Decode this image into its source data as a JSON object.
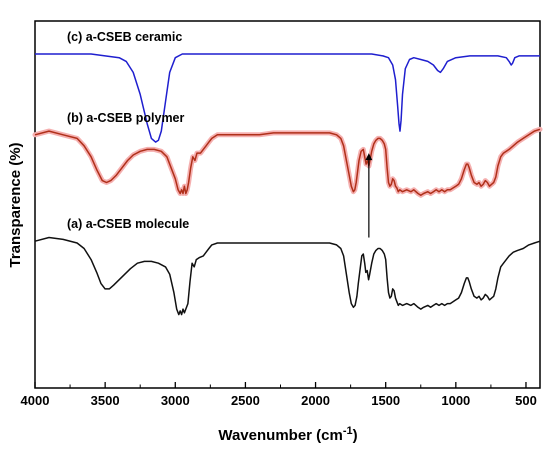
{
  "chart_data": {
    "type": "line",
    "title": "",
    "xlabel": "Wavenumber (cm",
    "xlabel_sup": "-1",
    "xlabel_close": ")",
    "ylabel": "Transparence (%)",
    "xlim": [
      4000,
      400
    ],
    "x_reversed": true,
    "x_ticks": [
      4000,
      3500,
      3000,
      2500,
      2000,
      1500,
      1000,
      500
    ],
    "x_tick_labels": [
      "4000",
      "3500",
      "3000",
      "2500",
      "2000",
      "1500",
      "1000",
      "500"
    ],
    "y_ticks_shown": false,
    "series": [
      {
        "name": "(c) a-CSEB ceramic",
        "color": "#1f1fcf",
        "points": [
          [
            4000,
            91
          ],
          [
            3850,
            91
          ],
          [
            3700,
            91
          ],
          [
            3600,
            91
          ],
          [
            3500,
            90.5
          ],
          [
            3400,
            90
          ],
          [
            3350,
            89
          ],
          [
            3300,
            86
          ],
          [
            3250,
            80
          ],
          [
            3200,
            72
          ],
          [
            3170,
            68
          ],
          [
            3140,
            67
          ],
          [
            3120,
            67.5
          ],
          [
            3100,
            70
          ],
          [
            3070,
            78
          ],
          [
            3040,
            86
          ],
          [
            3000,
            90
          ],
          [
            2950,
            91
          ],
          [
            2800,
            91
          ],
          [
            2500,
            91
          ],
          [
            2000,
            91
          ],
          [
            1800,
            91
          ],
          [
            1600,
            91
          ],
          [
            1520,
            90.5
          ],
          [
            1480,
            90
          ],
          [
            1450,
            88
          ],
          [
            1430,
            84
          ],
          [
            1415,
            77
          ],
          [
            1405,
            72
          ],
          [
            1398,
            70
          ],
          [
            1390,
            73
          ],
          [
            1380,
            80
          ],
          [
            1360,
            87
          ],
          [
            1330,
            89.5
          ],
          [
            1300,
            90
          ],
          [
            1250,
            89.5
          ],
          [
            1200,
            89
          ],
          [
            1160,
            88
          ],
          [
            1130,
            86.5
          ],
          [
            1110,
            86
          ],
          [
            1090,
            87
          ],
          [
            1060,
            89
          ],
          [
            1000,
            90
          ],
          [
            900,
            90.5
          ],
          [
            800,
            90.5
          ],
          [
            700,
            90.5
          ],
          [
            640,
            90
          ],
          [
            620,
            89
          ],
          [
            605,
            88
          ],
          [
            595,
            88.5
          ],
          [
            580,
            90
          ],
          [
            550,
            90.5
          ],
          [
            500,
            90.5
          ],
          [
            400,
            90.5
          ]
        ]
      },
      {
        "name": "(b) a-CSEB polymer",
        "color": "#b0301a",
        "highlight": "#f5b0b0",
        "points": [
          [
            4000,
            69
          ],
          [
            3900,
            70
          ],
          [
            3800,
            69
          ],
          [
            3700,
            68
          ],
          [
            3650,
            66
          ],
          [
            3600,
            63
          ],
          [
            3560,
            59.5
          ],
          [
            3520,
            56.5
          ],
          [
            3490,
            56
          ],
          [
            3460,
            56.5
          ],
          [
            3420,
            58
          ],
          [
            3380,
            60
          ],
          [
            3340,
            62
          ],
          [
            3300,
            63.5
          ],
          [
            3250,
            64.5
          ],
          [
            3200,
            65
          ],
          [
            3150,
            65
          ],
          [
            3100,
            64.5
          ],
          [
            3060,
            63
          ],
          [
            3030,
            60
          ],
          [
            3000,
            57
          ],
          [
            2980,
            54
          ],
          [
            2965,
            53
          ],
          [
            2955,
            54
          ],
          [
            2945,
            53
          ],
          [
            2935,
            55
          ],
          [
            2925,
            53
          ],
          [
            2915,
            54
          ],
          [
            2905,
            56
          ],
          [
            2890,
            60
          ],
          [
            2875,
            63
          ],
          [
            2860,
            62
          ],
          [
            2845,
            64
          ],
          [
            2820,
            64
          ],
          [
            2800,
            65
          ],
          [
            2780,
            66
          ],
          [
            2760,
            67
          ],
          [
            2740,
            68
          ],
          [
            2700,
            69
          ],
          [
            2600,
            69
          ],
          [
            2500,
            69
          ],
          [
            2400,
            69
          ],
          [
            2300,
            69.5
          ],
          [
            2200,
            69.5
          ],
          [
            2100,
            69.5
          ],
          [
            2000,
            69.5
          ],
          [
            1900,
            69.5
          ],
          [
            1850,
            69
          ],
          [
            1820,
            68
          ],
          [
            1800,
            66
          ],
          [
            1780,
            62
          ],
          [
            1760,
            58
          ],
          [
            1745,
            55
          ],
          [
            1730,
            53.5
          ],
          [
            1720,
            54
          ],
          [
            1710,
            56
          ],
          [
            1700,
            59
          ],
          [
            1690,
            62
          ],
          [
            1675,
            64.5
          ],
          [
            1660,
            65
          ],
          [
            1650,
            63
          ],
          [
            1640,
            61
          ],
          [
            1630,
            62
          ],
          [
            1620,
            60.5
          ],
          [
            1612,
            62
          ],
          [
            1600,
            64.5
          ],
          [
            1585,
            66.5
          ],
          [
            1570,
            67.5
          ],
          [
            1555,
            68
          ],
          [
            1540,
            68
          ],
          [
            1525,
            67.5
          ],
          [
            1510,
            66.5
          ],
          [
            1500,
            65
          ],
          [
            1490,
            60
          ],
          [
            1480,
            56
          ],
          [
            1470,
            55
          ],
          [
            1460,
            55.5
          ],
          [
            1450,
            57
          ],
          [
            1440,
            56.5
          ],
          [
            1430,
            55
          ],
          [
            1420,
            54.5
          ],
          [
            1410,
            53.5
          ],
          [
            1400,
            54
          ],
          [
            1380,
            53.5
          ],
          [
            1350,
            54
          ],
          [
            1320,
            53.5
          ],
          [
            1300,
            54
          ],
          [
            1270,
            53
          ],
          [
            1250,
            52.5
          ],
          [
            1230,
            53
          ],
          [
            1200,
            53.5
          ],
          [
            1180,
            53
          ],
          [
            1160,
            53.5
          ],
          [
            1140,
            54
          ],
          [
            1120,
            53.5
          ],
          [
            1100,
            54
          ],
          [
            1080,
            53.5
          ],
          [
            1060,
            54
          ],
          [
            1040,
            54
          ],
          [
            1020,
            54.5
          ],
          [
            1000,
            55
          ],
          [
            980,
            55.5
          ],
          [
            960,
            57
          ],
          [
            940,
            59.5
          ],
          [
            925,
            61
          ],
          [
            915,
            61
          ],
          [
            905,
            60
          ],
          [
            890,
            58
          ],
          [
            870,
            56
          ],
          [
            850,
            55.5
          ],
          [
            835,
            56
          ],
          [
            820,
            55
          ],
          [
            805,
            55.5
          ],
          [
            790,
            56.5
          ],
          [
            775,
            56
          ],
          [
            760,
            55
          ],
          [
            745,
            55.5
          ],
          [
            730,
            56
          ],
          [
            715,
            57.5
          ],
          [
            700,
            60.5
          ],
          [
            680,
            63
          ],
          [
            660,
            64
          ],
          [
            640,
            64.5
          ],
          [
            620,
            65
          ],
          [
            590,
            66
          ],
          [
            560,
            67
          ],
          [
            520,
            68
          ],
          [
            480,
            69
          ],
          [
            440,
            70
          ],
          [
            400,
            70.5
          ]
        ]
      },
      {
        "name": "(a) a-CSEB molecule",
        "color": "#111111",
        "points": [
          [
            4000,
            40
          ],
          [
            3900,
            41
          ],
          [
            3800,
            40.5
          ],
          [
            3700,
            39.5
          ],
          [
            3650,
            38
          ],
          [
            3600,
            35
          ],
          [
            3560,
            31.5
          ],
          [
            3530,
            28.5
          ],
          [
            3500,
            27
          ],
          [
            3470,
            27
          ],
          [
            3440,
            28
          ],
          [
            3400,
            29.5
          ],
          [
            3360,
            31
          ],
          [
            3320,
            32.5
          ],
          [
            3270,
            34
          ],
          [
            3220,
            34.5
          ],
          [
            3170,
            34.5
          ],
          [
            3120,
            34
          ],
          [
            3070,
            33
          ],
          [
            3040,
            31
          ],
          [
            3010,
            26
          ],
          [
            2990,
            21.5
          ],
          [
            2975,
            20
          ],
          [
            2965,
            21
          ],
          [
            2955,
            20
          ],
          [
            2945,
            21.5
          ],
          [
            2935,
            20.5
          ],
          [
            2925,
            21.5
          ],
          [
            2910,
            23
          ],
          [
            2895,
            29
          ],
          [
            2880,
            34
          ],
          [
            2865,
            33
          ],
          [
            2850,
            35
          ],
          [
            2830,
            35.5
          ],
          [
            2800,
            36
          ],
          [
            2780,
            37
          ],
          [
            2760,
            38
          ],
          [
            2740,
            39
          ],
          [
            2700,
            39.5
          ],
          [
            2600,
            39.5
          ],
          [
            2500,
            39.5
          ],
          [
            2400,
            39.5
          ],
          [
            2300,
            39.5
          ],
          [
            2200,
            39.5
          ],
          [
            2100,
            39.5
          ],
          [
            2000,
            39.5
          ],
          [
            1900,
            39.5
          ],
          [
            1850,
            39
          ],
          [
            1820,
            38
          ],
          [
            1800,
            36
          ],
          [
            1780,
            31
          ],
          [
            1760,
            26
          ],
          [
            1745,
            23
          ],
          [
            1730,
            22
          ],
          [
            1718,
            22.5
          ],
          [
            1705,
            25
          ],
          [
            1695,
            28.5
          ],
          [
            1680,
            33
          ],
          [
            1670,
            36
          ],
          [
            1660,
            36.5
          ],
          [
            1650,
            34
          ],
          [
            1642,
            31.5
          ],
          [
            1632,
            32
          ],
          [
            1622,
            29.5
          ],
          [
            1614,
            31
          ],
          [
            1600,
            34
          ],
          [
            1585,
            36.5
          ],
          [
            1570,
            37.5
          ],
          [
            1555,
            38
          ],
          [
            1540,
            38
          ],
          [
            1525,
            37.5
          ],
          [
            1510,
            36.5
          ],
          [
            1500,
            35
          ],
          [
            1490,
            30
          ],
          [
            1480,
            26
          ],
          [
            1470,
            24.5
          ],
          [
            1460,
            25
          ],
          [
            1450,
            27
          ],
          [
            1440,
            26.5
          ],
          [
            1430,
            24.5
          ],
          [
            1420,
            23.5
          ],
          [
            1410,
            22.5
          ],
          [
            1400,
            23
          ],
          [
            1380,
            22.5
          ],
          [
            1350,
            23
          ],
          [
            1320,
            22.5
          ],
          [
            1300,
            23
          ],
          [
            1270,
            22
          ],
          [
            1250,
            21.5
          ],
          [
            1230,
            22
          ],
          [
            1200,
            22.5
          ],
          [
            1180,
            22
          ],
          [
            1160,
            22.5
          ],
          [
            1140,
            23
          ],
          [
            1120,
            22.5
          ],
          [
            1100,
            23
          ],
          [
            1080,
            22.5
          ],
          [
            1060,
            23
          ],
          [
            1040,
            23
          ],
          [
            1020,
            23.5
          ],
          [
            1000,
            24
          ],
          [
            980,
            24.5
          ],
          [
            960,
            26
          ],
          [
            940,
            28.5
          ],
          [
            925,
            30
          ],
          [
            915,
            30
          ],
          [
            905,
            29
          ],
          [
            890,
            27
          ],
          [
            870,
            25
          ],
          [
            850,
            24.5
          ],
          [
            835,
            25
          ],
          [
            820,
            24
          ],
          [
            805,
            24.5
          ],
          [
            790,
            25.5
          ],
          [
            775,
            25
          ],
          [
            760,
            24
          ],
          [
            745,
            24.5
          ],
          [
            730,
            25
          ],
          [
            715,
            27
          ],
          [
            700,
            30
          ],
          [
            680,
            33
          ],
          [
            660,
            34
          ],
          [
            640,
            35
          ],
          [
            620,
            36
          ],
          [
            590,
            37
          ],
          [
            560,
            37.5
          ],
          [
            520,
            38
          ],
          [
            480,
            39
          ],
          [
            440,
            39.5
          ],
          [
            400,
            40
          ]
        ]
      }
    ],
    "annotations": [
      {
        "type": "arrow",
        "x": 1620,
        "y_from": 41,
        "y_to": 64,
        "direction": "up"
      }
    ]
  }
}
